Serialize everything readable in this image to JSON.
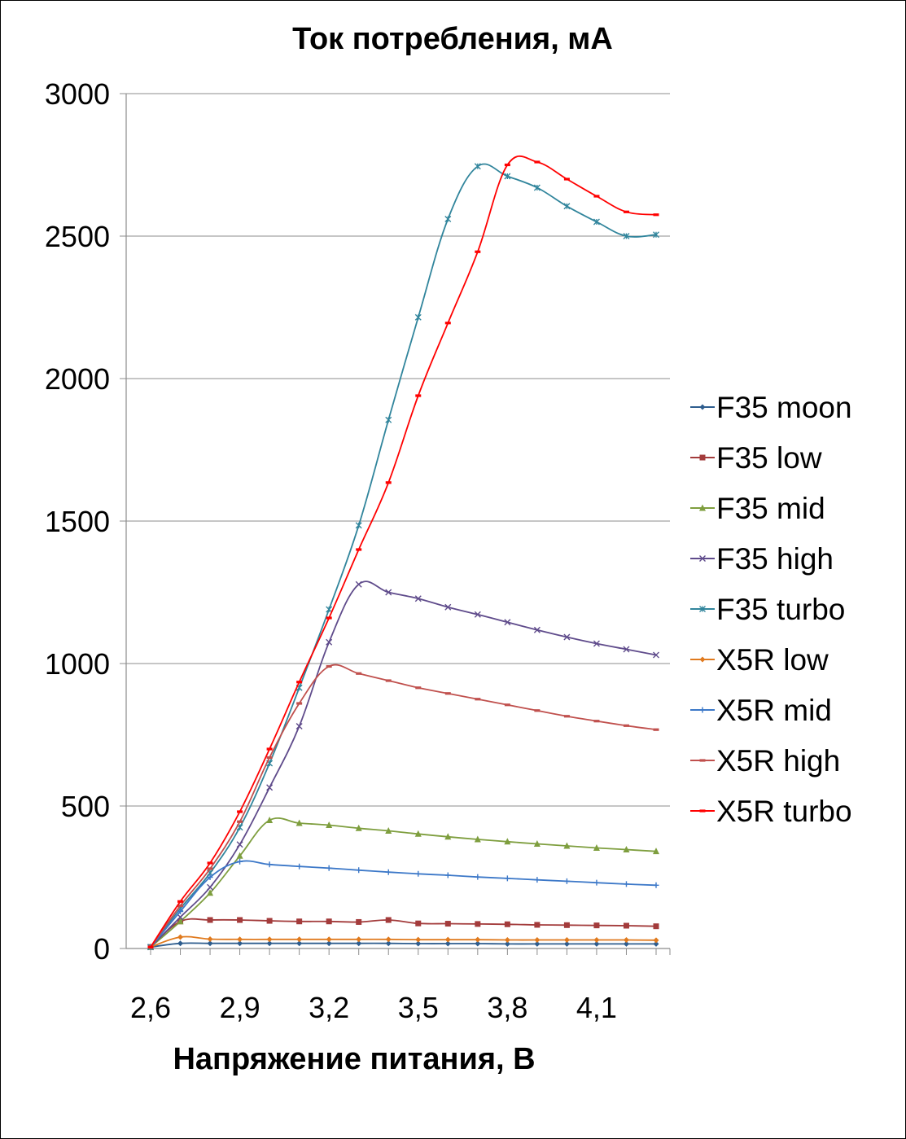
{
  "chart_data": {
    "type": "line",
    "title": "Ток потребления, мА",
    "xlabel": "Напряжение питания, В",
    "ylabel": "",
    "x": [
      2.6,
      2.7,
      2.8,
      2.9,
      3.0,
      3.1,
      3.2,
      3.3,
      3.4,
      3.5,
      3.6,
      3.7,
      3.8,
      3.9,
      4.0,
      4.1,
      4.2,
      4.3
    ],
    "x_tick_labels": [
      "2,6",
      "2,9",
      "3,2",
      "3,5",
      "3,8",
      "4,1"
    ],
    "x_tick_values": [
      2.6,
      2.9,
      3.2,
      3.5,
      3.8,
      4.1
    ],
    "xlim": [
      2.6,
      4.3
    ],
    "y_tick_labels": [
      "0",
      "500",
      "1000",
      "1500",
      "2000",
      "2500",
      "3000"
    ],
    "y_tick_values": [
      0,
      500,
      1000,
      1500,
      2000,
      2500,
      3000
    ],
    "ylim": [
      0,
      3000
    ],
    "grid": "horizontal",
    "legend_position": "right",
    "series": [
      {
        "name": "F35 moon",
        "color": "#2e5d8e",
        "marker": "diamond",
        "values": [
          5,
          18,
          18,
          18,
          18,
          18,
          18,
          18,
          18,
          17,
          17,
          17,
          16,
          16,
          16,
          16,
          16,
          16
        ]
      },
      {
        "name": "F35 low",
        "color": "#a33b3b",
        "marker": "square",
        "values": [
          5,
          95,
          100,
          100,
          97,
          95,
          95,
          93,
          100,
          88,
          87,
          86,
          85,
          83,
          82,
          81,
          80,
          78
        ]
      },
      {
        "name": "F35 mid",
        "color": "#7e9e3e",
        "marker": "triangle",
        "values": [
          5,
          95,
          195,
          325,
          450,
          440,
          433,
          422,
          413,
          402,
          392,
          383,
          375,
          367,
          360,
          353,
          347,
          341
        ]
      },
      {
        "name": "F35 high",
        "color": "#5f4b8b",
        "marker": "x",
        "values": [
          5,
          110,
          215,
          365,
          565,
          780,
          1075,
          1278,
          1250,
          1228,
          1198,
          1172,
          1145,
          1118,
          1093,
          1070,
          1050,
          1030
        ]
      },
      {
        "name": "F35 turbo",
        "color": "#31859c",
        "marker": "star",
        "values": [
          5,
          140,
          265,
          425,
          650,
          915,
          1190,
          1485,
          1855,
          2215,
          2560,
          2745,
          2710,
          2670,
          2605,
          2550,
          2500,
          2505
        ]
      },
      {
        "name": "X5R low",
        "color": "#e07a1e",
        "marker": "diamond",
        "values": [
          5,
          40,
          33,
          32,
          32,
          32,
          32,
          32,
          32,
          31,
          31,
          31,
          30,
          30,
          30,
          30,
          30,
          29
        ]
      },
      {
        "name": "X5R mid",
        "color": "#3c78c8",
        "marker": "plus",
        "values": [
          5,
          130,
          250,
          305,
          295,
          288,
          282,
          275,
          268,
          262,
          257,
          251,
          246,
          241,
          236,
          231,
          226,
          222
        ]
      },
      {
        "name": "X5R high",
        "color": "#c0504d",
        "marker": "dash",
        "values": [
          5,
          150,
          280,
          445,
          670,
          860,
          990,
          965,
          940,
          915,
          895,
          875,
          855,
          835,
          815,
          798,
          782,
          768
        ]
      },
      {
        "name": "X5R turbo",
        "color": "#ff0000",
        "marker": "dash",
        "values": [
          5,
          165,
          300,
          480,
          700,
          935,
          1160,
          1400,
          1635,
          1940,
          2195,
          2445,
          2750,
          2760,
          2700,
          2640,
          2585,
          2575
        ]
      }
    ]
  }
}
